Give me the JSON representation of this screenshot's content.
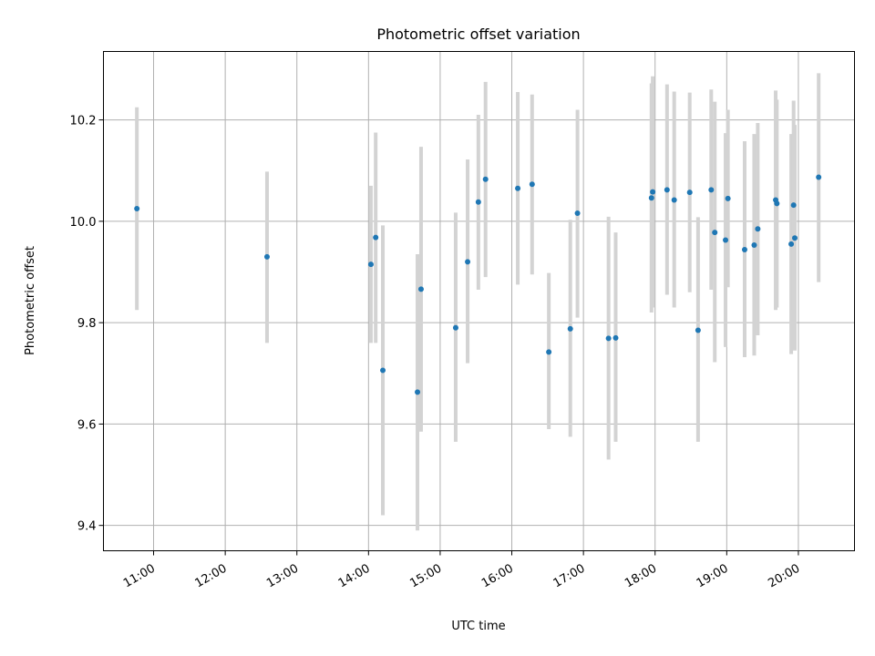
{
  "chart_data": {
    "type": "scatter",
    "title": "Photometric offset variation",
    "xlabel": "UTC time",
    "ylabel": "Photometric offset",
    "x_is_time": true,
    "xlim": [
      "10:18",
      "20:47"
    ],
    "ylim": [
      9.35,
      10.335
    ],
    "x_ticks": [
      "11:00",
      "12:00",
      "13:00",
      "14:00",
      "15:00",
      "16:00",
      "17:00",
      "18:00",
      "19:00",
      "20:00"
    ],
    "y_ticks": [
      9.4,
      9.6,
      9.8,
      10.0,
      10.2
    ],
    "y_tick_labels": [
      "9.4",
      "9.6",
      "9.8",
      "10.0",
      "10.2"
    ],
    "grid": true,
    "point_color": "#1f77b4",
    "errorbar_color": "#d3d3d3",
    "points": [
      {
        "t": "10:46",
        "y": 10.025,
        "lo": 9.825,
        "hi": 10.225
      },
      {
        "t": "12:35",
        "y": 9.93,
        "lo": 9.76,
        "hi": 10.098
      },
      {
        "t": "14:02",
        "y": 9.915,
        "lo": 9.76,
        "hi": 10.07
      },
      {
        "t": "14:06",
        "y": 9.968,
        "lo": 9.76,
        "hi": 10.175
      },
      {
        "t": "14:12",
        "y": 9.706,
        "lo": 9.42,
        "hi": 9.992
      },
      {
        "t": "14:41",
        "y": 9.663,
        "lo": 9.39,
        "hi": 9.935
      },
      {
        "t": "14:44",
        "y": 9.866,
        "lo": 9.585,
        "hi": 10.147
      },
      {
        "t": "15:13",
        "y": 9.79,
        "lo": 9.565,
        "hi": 10.017
      },
      {
        "t": "15:23",
        "y": 9.92,
        "lo": 9.72,
        "hi": 10.122
      },
      {
        "t": "15:32",
        "y": 10.038,
        "lo": 9.865,
        "hi": 10.21
      },
      {
        "t": "15:38",
        "y": 10.083,
        "lo": 9.89,
        "hi": 10.275
      },
      {
        "t": "16:05",
        "y": 10.065,
        "lo": 9.875,
        "hi": 10.255
      },
      {
        "t": "16:17",
        "y": 10.073,
        "lo": 9.895,
        "hi": 10.25
      },
      {
        "t": "16:31",
        "y": 9.742,
        "lo": 9.59,
        "hi": 9.898
      },
      {
        "t": "16:49",
        "y": 9.788,
        "lo": 9.575,
        "hi": 10.003
      },
      {
        "t": "16:55",
        "y": 10.016,
        "lo": 9.81,
        "hi": 10.22
      },
      {
        "t": "17:21",
        "y": 9.769,
        "lo": 9.53,
        "hi": 10.009
      },
      {
        "t": "17:27",
        "y": 9.77,
        "lo": 9.565,
        "hi": 9.978
      },
      {
        "t": "17:57",
        "y": 10.046,
        "lo": 9.82,
        "hi": 10.272
      },
      {
        "t": "17:58",
        "y": 10.058,
        "lo": 9.83,
        "hi": 10.286
      },
      {
        "t": "18:10",
        "y": 10.062,
        "lo": 9.855,
        "hi": 10.27
      },
      {
        "t": "18:16",
        "y": 10.042,
        "lo": 9.83,
        "hi": 10.256
      },
      {
        "t": "18:29",
        "y": 10.057,
        "lo": 9.86,
        "hi": 10.254
      },
      {
        "t": "18:36",
        "y": 9.785,
        "lo": 9.565,
        "hi": 10.008
      },
      {
        "t": "18:47",
        "y": 10.062,
        "lo": 9.865,
        "hi": 10.26
      },
      {
        "t": "18:50",
        "y": 9.978,
        "lo": 9.722,
        "hi": 10.236
      },
      {
        "t": "18:59",
        "y": 9.963,
        "lo": 9.752,
        "hi": 10.174
      },
      {
        "t": "19:01",
        "y": 10.045,
        "lo": 9.87,
        "hi": 10.22
      },
      {
        "t": "19:15",
        "y": 9.944,
        "lo": 9.732,
        "hi": 10.158
      },
      {
        "t": "19:23",
        "y": 9.953,
        "lo": 9.735,
        "hi": 10.172
      },
      {
        "t": "19:26",
        "y": 9.985,
        "lo": 9.775,
        "hi": 10.194
      },
      {
        "t": "19:41",
        "y": 10.042,
        "lo": 9.825,
        "hi": 10.258
      },
      {
        "t": "19:42",
        "y": 10.035,
        "lo": 9.83,
        "hi": 10.24
      },
      {
        "t": "19:54",
        "y": 9.955,
        "lo": 9.738,
        "hi": 10.172
      },
      {
        "t": "19:56",
        "y": 10.032,
        "lo": 9.825,
        "hi": 10.238
      },
      {
        "t": "19:57",
        "y": 9.967,
        "lo": 9.745,
        "hi": 10.19
      },
      {
        "t": "20:17",
        "y": 10.087,
        "lo": 9.88,
        "hi": 10.292
      }
    ]
  }
}
